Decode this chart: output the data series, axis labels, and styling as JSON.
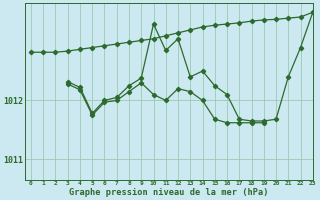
{
  "background_color": "#cce8f0",
  "grid_color": "#9dc8b0",
  "line_color": "#2d6a2d",
  "xlabel": "Graphe pression niveau de la mer (hPa)",
  "xlim": [
    -0.5,
    23
  ],
  "ylim": [
    1010.65,
    1013.65
  ],
  "yticks": [
    1011,
    1012
  ],
  "xticks": [
    0,
    1,
    2,
    3,
    4,
    5,
    6,
    7,
    8,
    9,
    10,
    11,
    12,
    13,
    14,
    15,
    16,
    17,
    18,
    19,
    20,
    21,
    22,
    23
  ],
  "series1_x": [
    0,
    1,
    2,
    3,
    4,
    5,
    6,
    7,
    8,
    9,
    10,
    11,
    12,
    13,
    14,
    15,
    16,
    17,
    18,
    19,
    20,
    21,
    22,
    23
  ],
  "series1_y": [
    1012.82,
    1012.82,
    1012.82,
    1012.84,
    1012.87,
    1012.9,
    1012.93,
    1012.96,
    1012.99,
    1013.02,
    1013.05,
    1013.1,
    1013.15,
    1013.2,
    1013.25,
    1013.28,
    1013.3,
    1013.32,
    1013.35,
    1013.37,
    1013.38,
    1013.4,
    1013.42,
    1013.5
  ],
  "series2_x": [
    3,
    4,
    5,
    6,
    7,
    8,
    9,
    10,
    11,
    12,
    13,
    14,
    15,
    16,
    17,
    18,
    19,
    20,
    21,
    22,
    23
  ],
  "series2_y": [
    1012.32,
    1012.22,
    1011.78,
    1012.0,
    1012.05,
    1012.25,
    1012.38,
    1013.3,
    1012.85,
    1013.05,
    1012.4,
    1012.5,
    1012.25,
    1012.1,
    1011.68,
    1011.65,
    1011.65,
    1011.68,
    1012.4,
    1012.9,
    1013.5
  ],
  "series3_x": [
    3,
    4,
    5,
    6,
    7,
    8,
    9,
    10,
    11,
    12,
    13,
    14,
    15,
    16,
    17,
    18,
    19
  ],
  "series3_y": [
    1012.28,
    1012.18,
    1011.75,
    1011.97,
    1012.0,
    1012.15,
    1012.3,
    1012.1,
    1012.0,
    1012.2,
    1012.15,
    1012.0,
    1011.68,
    1011.62,
    1011.62,
    1011.62,
    1011.62
  ]
}
